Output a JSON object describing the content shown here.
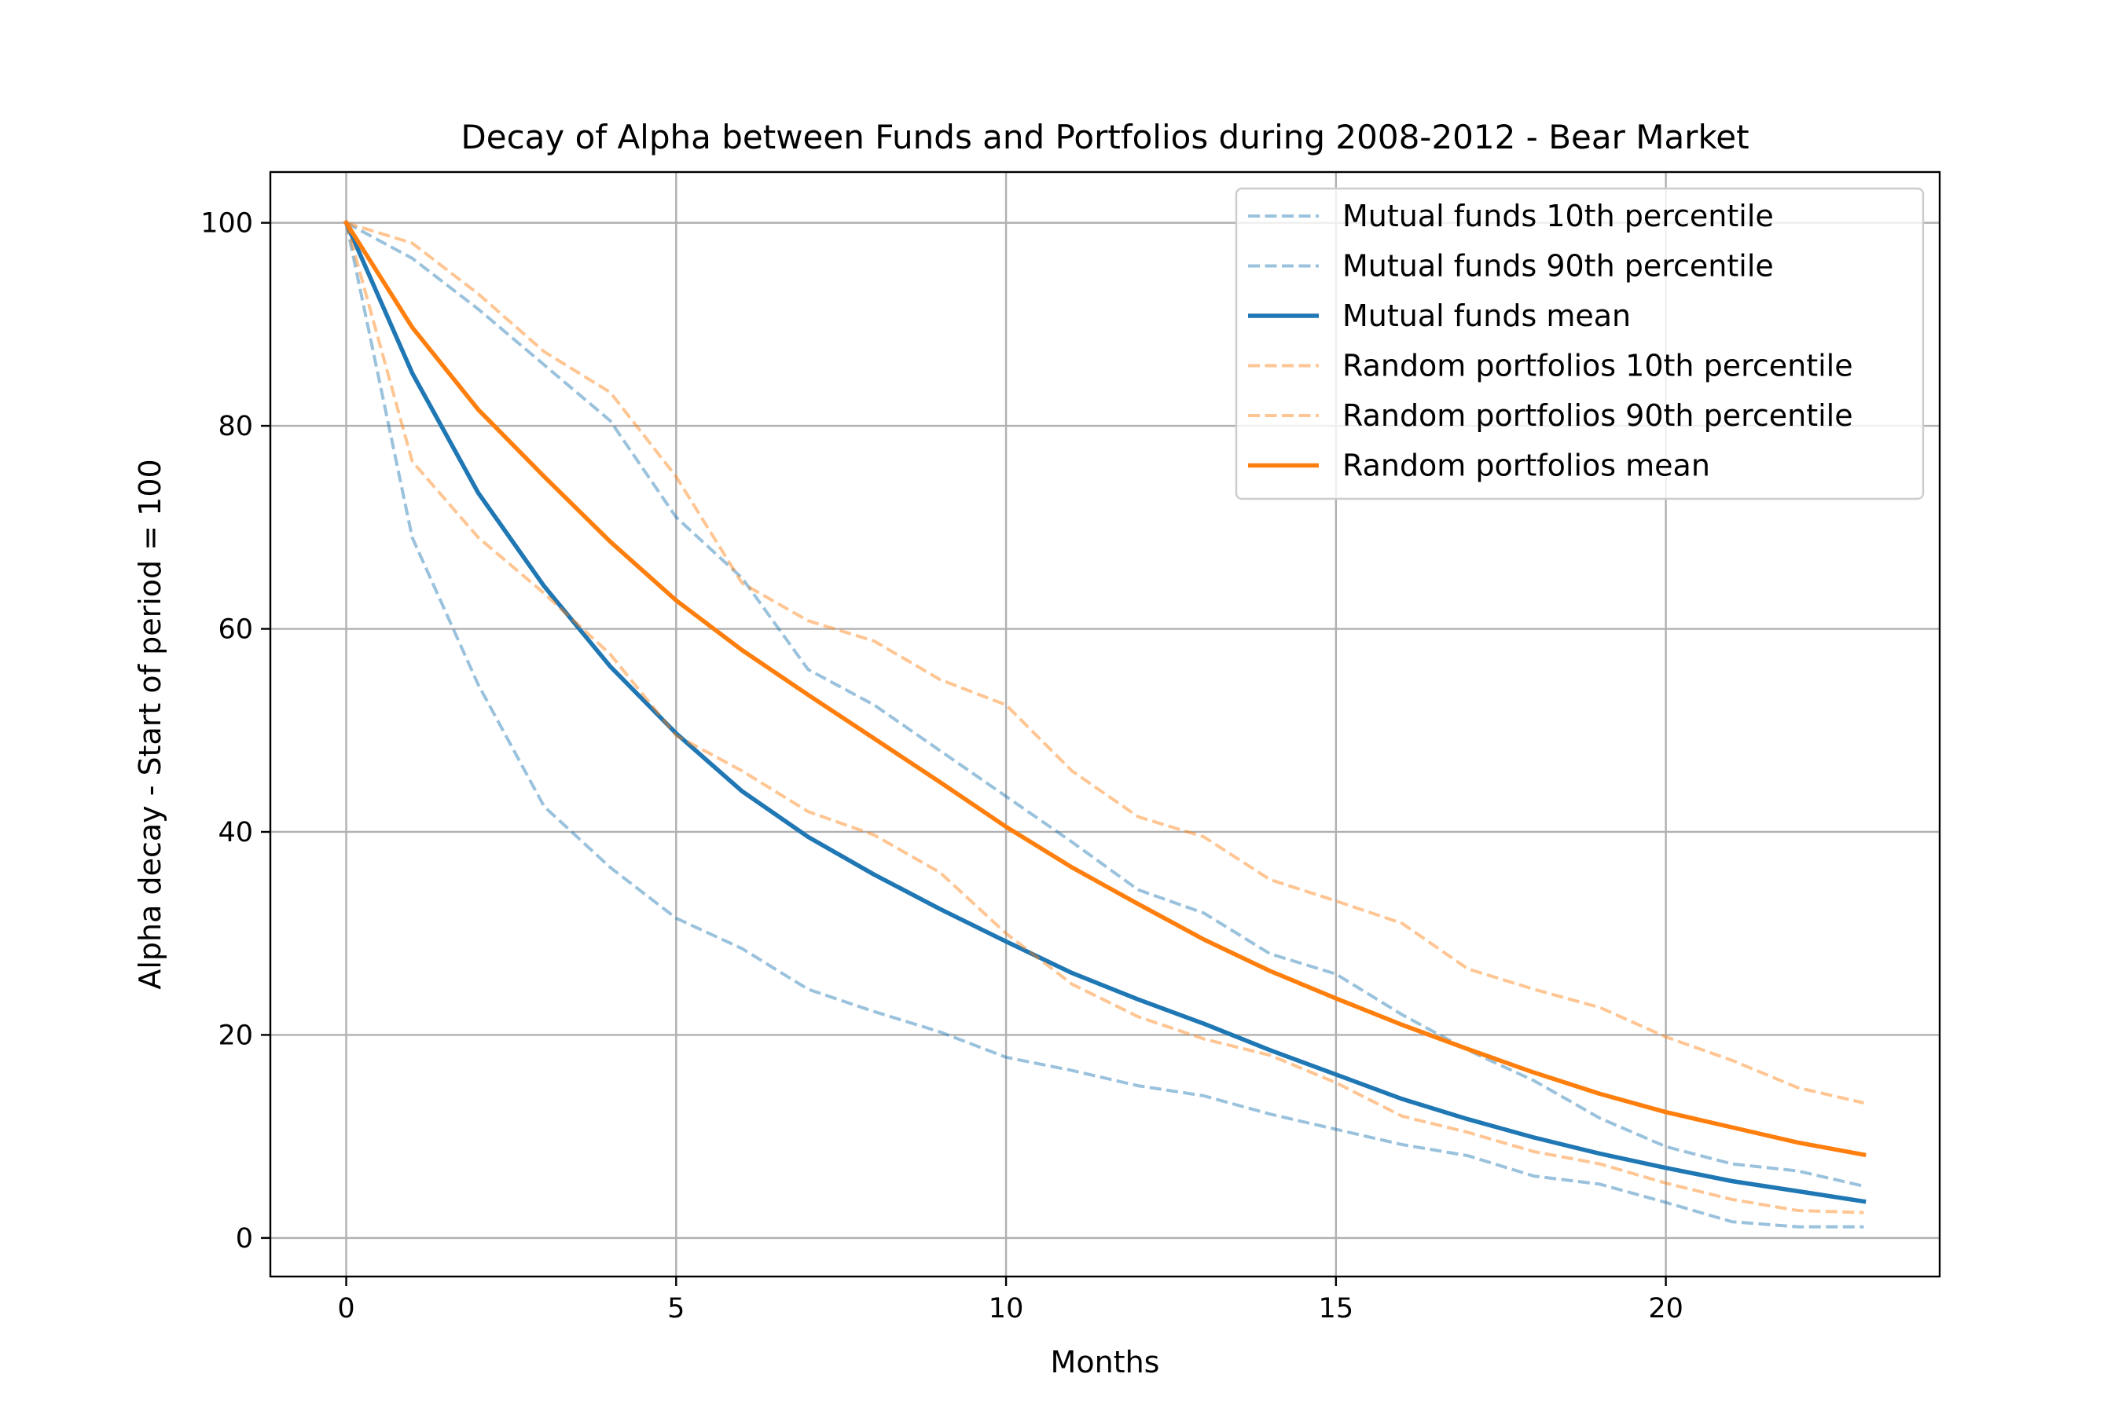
{
  "chart_data": {
    "type": "line",
    "title": "Decay of Alpha between Funds and Portfolios during 2008-2012 - Bear Market",
    "xlabel": "Months",
    "ylabel": "Alpha decay - Start of period = 100",
    "xlim": [
      -1.15,
      24.15
    ],
    "ylim": [
      -3.8,
      105
    ],
    "xticks": [
      0,
      5,
      10,
      15,
      20
    ],
    "yticks": [
      0,
      20,
      40,
      60,
      80,
      100
    ],
    "grid": true,
    "legend_position": "top-right",
    "x": [
      0,
      1,
      2,
      3,
      4,
      5,
      6,
      7,
      8,
      9,
      10,
      11,
      12,
      13,
      14,
      15,
      16,
      17,
      18,
      19,
      20,
      21,
      22,
      23
    ],
    "series": [
      {
        "name": "Mutual funds 10th percentile",
        "color": "#1f77b4",
        "style": "dashed",
        "alpha": 0.45,
        "values": [
          100,
          69,
          54.5,
          42.5,
          36.5,
          31.5,
          28.5,
          24.5,
          22.3,
          20.3,
          17.8,
          16.5,
          15,
          14,
          12.2,
          10.7,
          9.2,
          8.1,
          6.1,
          5.3,
          3.5,
          1.6,
          1.1,
          1.1
        ]
      },
      {
        "name": "Mutual funds 90th percentile",
        "color": "#1f77b4",
        "style": "dashed",
        "alpha": 0.45,
        "values": [
          100,
          96.5,
          91.5,
          86,
          80.5,
          71,
          65,
          56,
          52.5,
          48,
          43.5,
          39,
          34.3,
          32,
          28,
          26,
          22,
          18.5,
          15.5,
          11.8,
          9,
          7.3,
          6.6,
          5.1
        ]
      },
      {
        "name": "Mutual funds mean",
        "color": "#1f77b4",
        "style": "solid",
        "alpha": 1,
        "values": [
          100,
          85.2,
          73.4,
          64.2,
          56.3,
          49.7,
          44,
          39.5,
          35.8,
          32.4,
          29.2,
          26.1,
          23.5,
          21.1,
          18.5,
          16.1,
          13.7,
          11.7,
          9.9,
          8.3,
          6.9,
          5.6,
          4.6,
          3.6
        ]
      },
      {
        "name": "Random portfolios 10th percentile",
        "color": "#ff7f0e",
        "style": "dashed",
        "alpha": 0.45,
        "values": [
          100,
          76.5,
          69,
          63.5,
          57.5,
          49.5,
          46,
          42,
          39.7,
          36,
          30,
          25,
          21.8,
          19.6,
          18,
          15.3,
          12,
          10.4,
          8.5,
          7.3,
          5.4,
          3.8,
          2.7,
          2.5
        ]
      },
      {
        "name": "Random portfolios 90th percentile",
        "color": "#ff7f0e",
        "style": "dashed",
        "alpha": 0.45,
        "values": [
          100,
          98,
          93,
          87.3,
          83.3,
          75,
          64.5,
          60.8,
          58.8,
          55,
          52.5,
          46,
          41.5,
          39.5,
          35.3,
          33.2,
          31,
          26.5,
          24.5,
          22.7,
          19.8,
          17.5,
          14.8,
          13.3
        ]
      },
      {
        "name": "Random portfolios mean",
        "color": "#ff7f0e",
        "style": "solid",
        "alpha": 1,
        "values": [
          100,
          89.7,
          81.6,
          75,
          68.6,
          62.8,
          57.9,
          53.5,
          49.2,
          44.9,
          40.5,
          36.5,
          32.9,
          29.4,
          26.3,
          23.6,
          21,
          18.6,
          16.3,
          14.2,
          12.4,
          10.9,
          9.4,
          8.2
        ]
      }
    ]
  }
}
